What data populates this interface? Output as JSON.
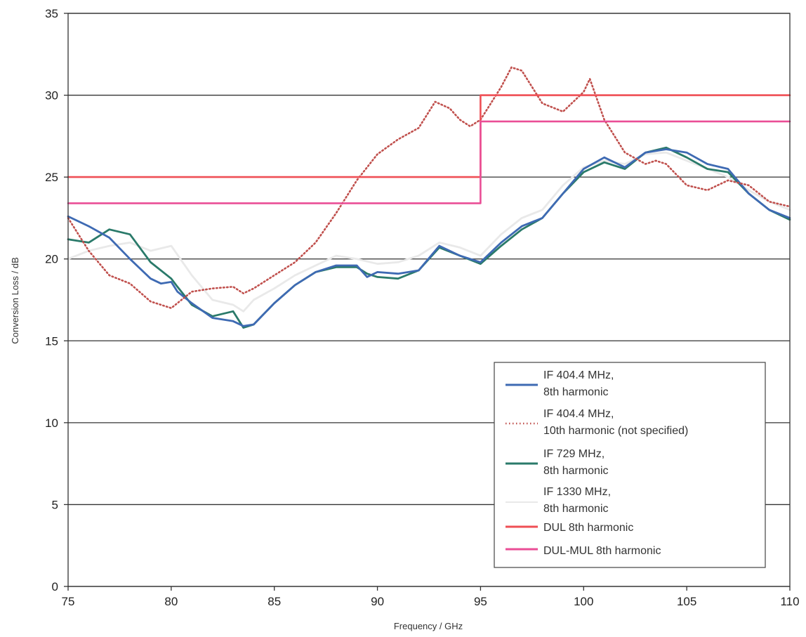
{
  "chart_data": {
    "type": "line",
    "xlabel": "Frequency / GHz",
    "ylabel": "Conversion Loss / dB",
    "xlim": [
      75,
      110
    ],
    "ylim": [
      0,
      35
    ],
    "xticks": [
      "75",
      "80",
      "85",
      "90",
      "95",
      "100",
      "105",
      "110"
    ],
    "yticks": [
      "0",
      "5",
      "10",
      "15",
      "20",
      "25",
      "30",
      "35"
    ],
    "grid": "horizontal",
    "legend_position": "bottom-right",
    "series": [
      {
        "name_lines": [
          "IF 404.4 MHz,",
          "8th harmonic"
        ],
        "color": "#3e6ab3",
        "style": "solid",
        "x": [
          75,
          76,
          77,
          78,
          79,
          79.5,
          80,
          80.3,
          81,
          82,
          83,
          83.5,
          84,
          85,
          86,
          87,
          88,
          89,
          89.5,
          90,
          91,
          92,
          93,
          94,
          95,
          96,
          97,
          98,
          99,
          100,
          101,
          102,
          103,
          104,
          105,
          106,
          107,
          108,
          109,
          110
        ],
        "y": [
          22.6,
          22.0,
          21.3,
          20.0,
          18.8,
          18.5,
          18.6,
          18.0,
          17.3,
          16.4,
          16.2,
          15.9,
          16.0,
          17.3,
          18.4,
          19.2,
          19.6,
          19.6,
          18.9,
          19.2,
          19.1,
          19.3,
          20.8,
          20.2,
          19.8,
          21.0,
          22.0,
          22.5,
          24.0,
          25.5,
          26.2,
          25.6,
          26.5,
          26.7,
          26.5,
          25.8,
          25.5,
          24.0,
          23.0,
          22.5
        ]
      },
      {
        "name_lines": [
          "IF 404.4 MHz,",
          "10th harmonic (not specified)"
        ],
        "color": "#c0504d",
        "style": "dotted",
        "x": [
          75,
          76,
          77,
          78,
          79,
          80,
          80.5,
          81,
          82,
          83,
          83.5,
          84,
          85,
          86,
          87,
          88,
          89,
          90,
          91,
          92,
          92.8,
          93.5,
          94,
          94.5,
          95,
          96,
          96.5,
          97,
          98,
          99,
          100,
          100.3,
          101,
          102,
          103,
          103.5,
          104,
          105,
          106,
          107,
          108,
          109,
          110
        ],
        "y": [
          22.5,
          20.5,
          19.0,
          18.5,
          17.4,
          17.0,
          17.5,
          18.0,
          18.2,
          18.3,
          17.9,
          18.2,
          19.0,
          19.8,
          21.0,
          22.8,
          24.8,
          26.4,
          27.3,
          28.0,
          29.6,
          29.2,
          28.5,
          28.1,
          28.5,
          30.5,
          31.7,
          31.5,
          29.5,
          29.0,
          30.2,
          31.0,
          28.5,
          26.5,
          25.8,
          26.0,
          25.8,
          24.5,
          24.2,
          24.8,
          24.5,
          23.5,
          23.2
        ]
      },
      {
        "name_lines": [
          "IF 729 MHz,",
          "8th harmonic"
        ],
        "color": "#2a7a6a",
        "style": "solid",
        "x": [
          75,
          76,
          77,
          78,
          79,
          80,
          80.3,
          81,
          82,
          83,
          83.5,
          84,
          85,
          86,
          87,
          88,
          89,
          89.5,
          90,
          91,
          92,
          93,
          94,
          95,
          96,
          97,
          98,
          99,
          100,
          101,
          102,
          103,
          104,
          105,
          106,
          107,
          108,
          109,
          110
        ],
        "y": [
          21.2,
          21.0,
          21.8,
          21.5,
          19.8,
          18.8,
          18.3,
          17.2,
          16.5,
          16.8,
          15.8,
          16.0,
          17.3,
          18.4,
          19.2,
          19.5,
          19.5,
          19.1,
          18.9,
          18.8,
          19.3,
          20.7,
          20.2,
          19.7,
          20.8,
          21.8,
          22.5,
          24.0,
          25.3,
          25.9,
          25.5,
          26.5,
          26.8,
          26.2,
          25.5,
          25.3,
          24.0,
          23.0,
          22.4
        ]
      },
      {
        "name_lines": [
          "IF 1330 MHz,",
          "8th harmonic"
        ],
        "color": "#e9e9e9",
        "style": "solid",
        "x": [
          75,
          76,
          77,
          78,
          79,
          80,
          81,
          82,
          83,
          83.5,
          84,
          85,
          86,
          87,
          88,
          89,
          90,
          91,
          92,
          93,
          94,
          95,
          96,
          97,
          98,
          99,
          100,
          101,
          102,
          103,
          104,
          105,
          106,
          107,
          108,
          109,
          110
        ],
        "y": [
          20.0,
          20.5,
          20.8,
          21.0,
          20.5,
          20.8,
          19.0,
          17.5,
          17.2,
          16.8,
          17.5,
          18.2,
          19.0,
          19.6,
          20.2,
          20.0,
          19.7,
          19.8,
          20.2,
          21.0,
          20.7,
          20.2,
          21.5,
          22.5,
          23.0,
          24.5,
          25.6,
          26.0,
          25.8,
          26.4,
          26.5,
          26.0,
          25.5,
          25.0,
          24.2,
          23.5,
          23.0
        ]
      },
      {
        "name": "DUL 8th harmonic",
        "color": "#ef4f55",
        "style": "solid",
        "x": [
          75,
          95,
          95,
          110
        ],
        "y": [
          25.0,
          25.0,
          30.0,
          30.0
        ]
      },
      {
        "name": "DUL-MUL 8th harmonic",
        "color": "#ea4e96",
        "style": "solid",
        "x": [
          75,
          95,
          95,
          110
        ],
        "y": [
          23.4,
          23.4,
          28.4,
          28.4
        ]
      }
    ]
  }
}
